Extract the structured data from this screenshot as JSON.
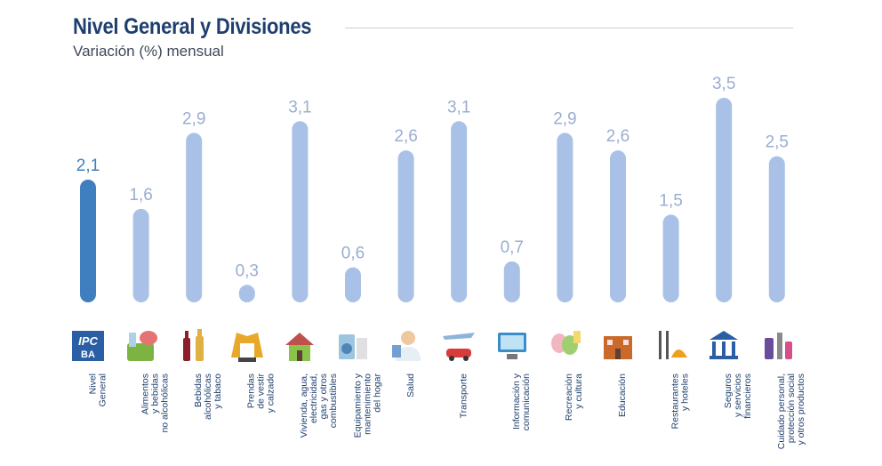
{
  "header": {
    "title": "Nivel General y Divisiones",
    "subtitle": "Variación (%) mensual"
  },
  "colors": {
    "highlight_bar": "#3f7fbf",
    "bar": "#a9c1e6",
    "value_label": "#9aaed0",
    "highlight_value_label": "#3f7fbf",
    "title": "#1e3f6e"
  },
  "chart_data": {
    "type": "bar",
    "title": "Nivel General y Divisiones",
    "subtitle": "Variación (%) mensual",
    "categories": [
      "Nivel\nGeneral",
      "Alimentos\ny bebidas\nno alcohólicas",
      "Bebidas\nalcohólicas\ny tabaco",
      "Prendas\nde vestir\ny calzado",
      "Vivienda, agua,\nelectricidad,\ngas y otros\ncombustibles",
      "Equipamiento y\nmantenimiento\ndel hogar",
      "Salud",
      "Transporte",
      "Información y\ncomunicación",
      "Recreación\ny cultura",
      "Educación",
      "Restaurantes\ny hoteles",
      "Seguros\ny servicios\nfinancieros",
      "Cuidado personal,\nprotección social\ny otros productos"
    ],
    "values": [
      2.1,
      1.6,
      2.9,
      0.3,
      3.1,
      0.6,
      2.6,
      3.1,
      0.7,
      2.9,
      2.6,
      1.5,
      3.5,
      2.5
    ],
    "value_labels": [
      "2,1",
      "1,6",
      "2,9",
      "0,3",
      "3,1",
      "0,6",
      "2,6",
      "3,1",
      "0,7",
      "2,9",
      "2,6",
      "1,5",
      "3,5",
      "2,5"
    ],
    "highlight_index": 0,
    "xlabel": "",
    "ylabel": "",
    "ylim": [
      0,
      3.5
    ],
    "grid": false,
    "icons": [
      "ipc-ba-logo-icon",
      "food-basket-icon",
      "wine-bottles-icon",
      "jacket-shoes-icon",
      "house-tools-icon",
      "appliances-icon",
      "doctor-icon",
      "plane-car-icon",
      "computer-icon",
      "theater-masks-icon",
      "school-icon",
      "cutlery-icon",
      "bank-icon",
      "cosmetics-icon"
    ]
  }
}
